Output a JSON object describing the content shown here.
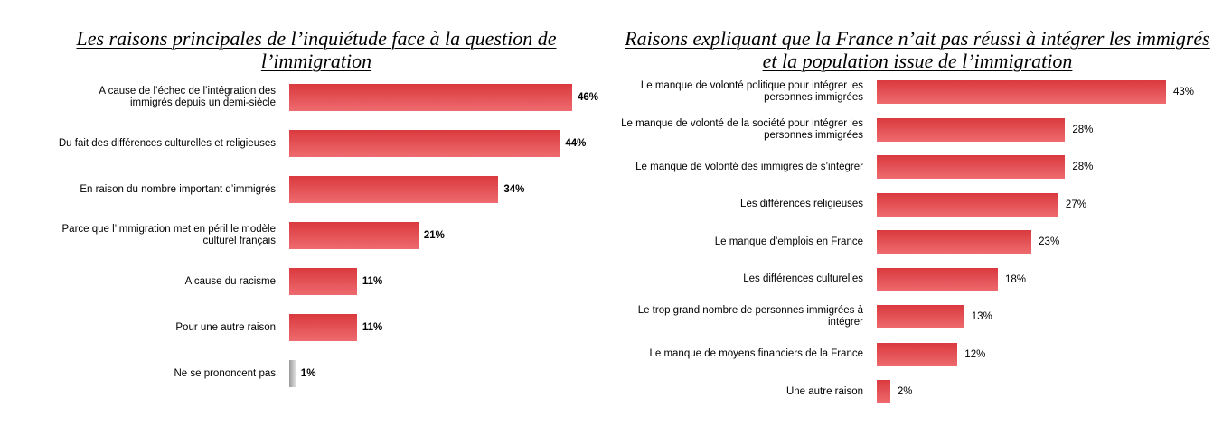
{
  "colors": {
    "bar": "#d9393e",
    "bar_light": "#ee6b6f",
    "bar_grey": "#9a9a9a",
    "bar_grey_light": "#e0e0e0"
  },
  "chart_data": [
    {
      "type": "bar",
      "orientation": "horizontal",
      "title": "Les raisons principales de l’inquiétude face à la question de l’immigration",
      "categories": [
        "A cause de l’échec de l’intégration des immigrés depuis un demi-siècle",
        "Du fait des différences culturelles et religieuses",
        "En raison du nombre important d’immigrés",
        "Parce que l’immigration met en péril le modèle culturel français",
        "A cause du racisme",
        "Pour une autre raison",
        "Ne se prononcent pas"
      ],
      "values": [
        46,
        44,
        34,
        21,
        11,
        11,
        1
      ],
      "value_labels": [
        "46%",
        "44%",
        "34%",
        "21%",
        "11%",
        "11%",
        "1%"
      ],
      "grey_last": true
    },
    {
      "type": "bar",
      "orientation": "horizontal",
      "title": "Raisons expliquant que la France n’ait pas réussi à intégrer les immigrés et la population issue de l’immigration",
      "categories": [
        "Le manque de volonté politique pour intégrer les personnes immigrées",
        "Le manque de volonté de la société pour intégrer les personnes immigrées",
        "Le manque de volonté des immigrés de s’intégrer",
        "Les différences religieuses",
        "Le manque d’emplois en France",
        "Les différences culturelles",
        "Le trop grand nombre de personnes immigrées à intégrer",
        "Le manque de moyens financiers de la France",
        "Une autre raison"
      ],
      "values": [
        43,
        28,
        28,
        27,
        23,
        18,
        13,
        12,
        2
      ],
      "value_labels": [
        "43%",
        "28%",
        "28%",
        "27%",
        "23%",
        "18%",
        "13%",
        "12%",
        "2%"
      ],
      "grey_last": false
    }
  ]
}
